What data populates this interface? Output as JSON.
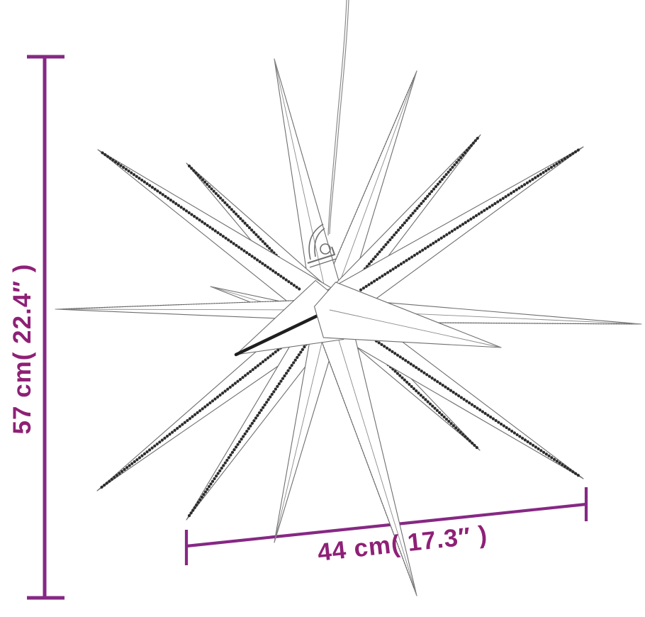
{
  "diagram": {
    "title": "moravian-star-product-dimension-diagram",
    "height_label": "57 cm( 22.4″ )",
    "width_label": "44 cm( 17.3″ )"
  },
  "colors": {
    "dimension_line": "#862884",
    "dimension_text": "#8E2076",
    "line_art": "#6e6e6e",
    "dotted_edge": "#2c2c2c",
    "background": "#ffffff"
  }
}
